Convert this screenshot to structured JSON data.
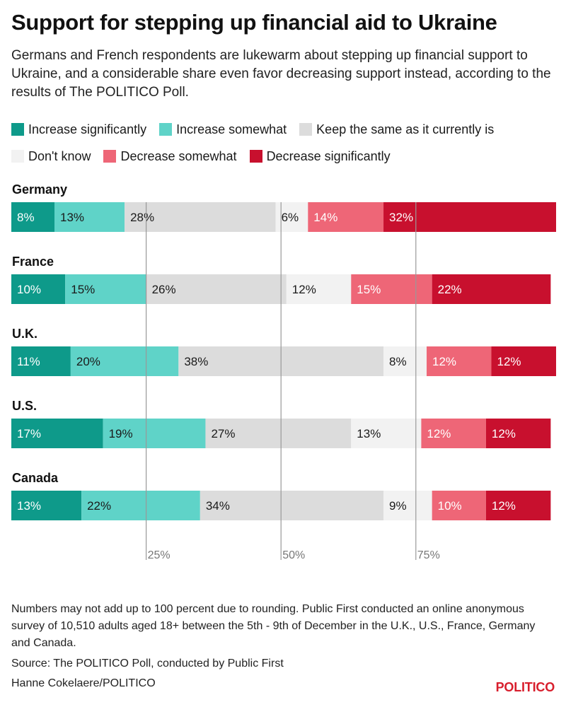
{
  "title": "Support for stepping up financial aid to Ukraine",
  "subtitle": "Germans and French respondents are lukewarm about stepping up financial support to Ukraine, and a considerable share even favor decreasing support instead, according to the results of The POLITICO Poll.",
  "footnote": "Numbers may not add up to 100 percent due to rounding. Public First conducted an online anonymous survey of 10,510 adults aged 18+ between the 5th - 9th of December in the U.K., U.S., France, Germany and Canada.",
  "source": "Source: The POLITICO Poll, conducted by Public First",
  "credit": "Hanne Cokelaere/POLITICO",
  "logo_text": "POLITICO",
  "chart_data": {
    "type": "bar",
    "orientation": "horizontal",
    "stacked": true,
    "categories": [
      "Germany",
      "France",
      "U.K.",
      "U.S.",
      "Canada"
    ],
    "series": [
      {
        "name": "Increase significantly",
        "color": "#0e9a8a",
        "label_color": "#ffffff",
        "values": [
          8,
          10,
          11,
          17,
          13
        ]
      },
      {
        "name": "Increase somewhat",
        "color": "#5fd3c8",
        "label_color": "#1a1a1a",
        "values": [
          13,
          15,
          20,
          19,
          22
        ]
      },
      {
        "name": "Keep the same as it currently is",
        "color": "#dcdcdc",
        "label_color": "#1a1a1a",
        "values": [
          28,
          26,
          38,
          27,
          34
        ]
      },
      {
        "name": "Don't know",
        "color": "#f2f2f2",
        "label_color": "#1a1a1a",
        "values": [
          6,
          12,
          8,
          13,
          9
        ]
      },
      {
        "name": "Decrease somewhat",
        "color": "#ee6677",
        "label_color": "#ffffff",
        "values": [
          14,
          15,
          12,
          12,
          10
        ]
      },
      {
        "name": "Decrease significantly",
        "color": "#c8102e",
        "label_color": "#ffffff",
        "values": [
          32,
          22,
          12,
          12,
          12
        ]
      }
    ],
    "gridlines": [
      25,
      50,
      75
    ],
    "tick_labels": [
      "25%",
      "50%",
      "75%"
    ],
    "xlim": [
      0,
      101
    ],
    "value_suffix": "%"
  }
}
